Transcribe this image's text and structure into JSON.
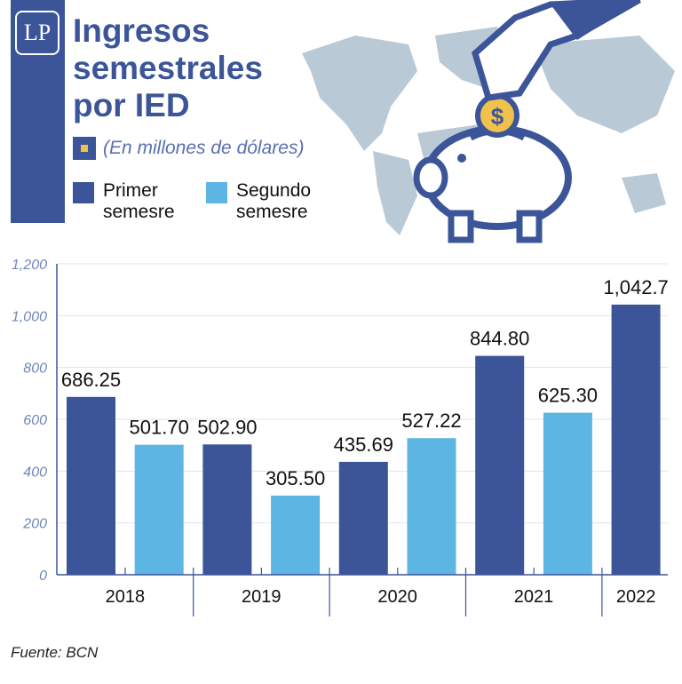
{
  "logo": {
    "text": "LP"
  },
  "header": {
    "title": "Ingresos semestrales por IED",
    "unit": "(En millones de dólares)"
  },
  "legend": [
    {
      "label": "Primer semesre",
      "color": "#3c5599"
    },
    {
      "label": "Segundo semesre",
      "color": "#5db5e3"
    }
  ],
  "chart_data": {
    "type": "bar",
    "title": "Ingresos semestrales por IED",
    "ylabel": "(En millones de dólares)",
    "ylim": [
      0,
      1200
    ],
    "yticks": [
      "0",
      "200",
      "400",
      "600",
      "800",
      "1,000",
      "1,200"
    ],
    "ytick_values": [
      0,
      200,
      400,
      600,
      800,
      1000,
      1200
    ],
    "grid": true,
    "categories": [
      "2018",
      "2019",
      "2020",
      "2021",
      "2022"
    ],
    "series": [
      {
        "name": "Primer semesre",
        "values": [
          686.25,
          502.9,
          435.69,
          844.8,
          1042.7
        ],
        "labels": [
          "686.25",
          "502.90",
          "435.69",
          "844.80",
          "1,042.7"
        ]
      },
      {
        "name": "Segundo semesre",
        "values": [
          501.7,
          305.5,
          527.22,
          625.3,
          null
        ],
        "labels": [
          "501.70",
          "305.50",
          "527.22",
          "625.30",
          ""
        ]
      }
    ]
  },
  "source": "Fuente: BCN"
}
